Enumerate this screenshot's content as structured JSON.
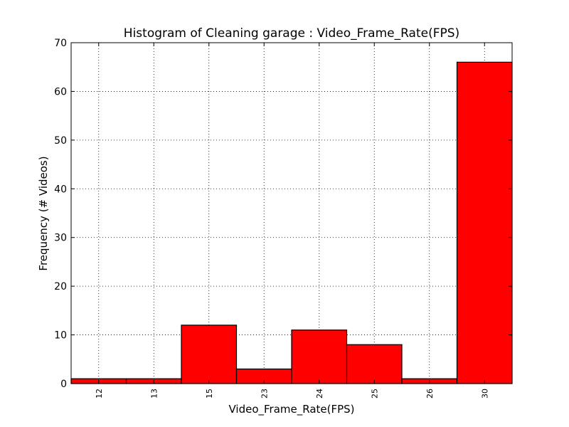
{
  "chart_data": {
    "type": "bar",
    "title": "Histogram of Cleaning garage : Video_Frame_Rate(FPS)",
    "xlabel": "Video_Frame_Rate(FPS)",
    "ylabel": "Frequency (# Videos)",
    "categories": [
      "12",
      "13",
      "15",
      "23",
      "24",
      "25",
      "26",
      "30"
    ],
    "values": [
      1,
      1,
      12,
      3,
      11,
      8,
      1,
      66
    ],
    "ylim": [
      0,
      70
    ],
    "yticks": [
      "0",
      "10",
      "20",
      "30",
      "40",
      "50",
      "60",
      "70"
    ],
    "grid": true,
    "bar_color": "#ff0000",
    "edge_color": "#000000"
  }
}
